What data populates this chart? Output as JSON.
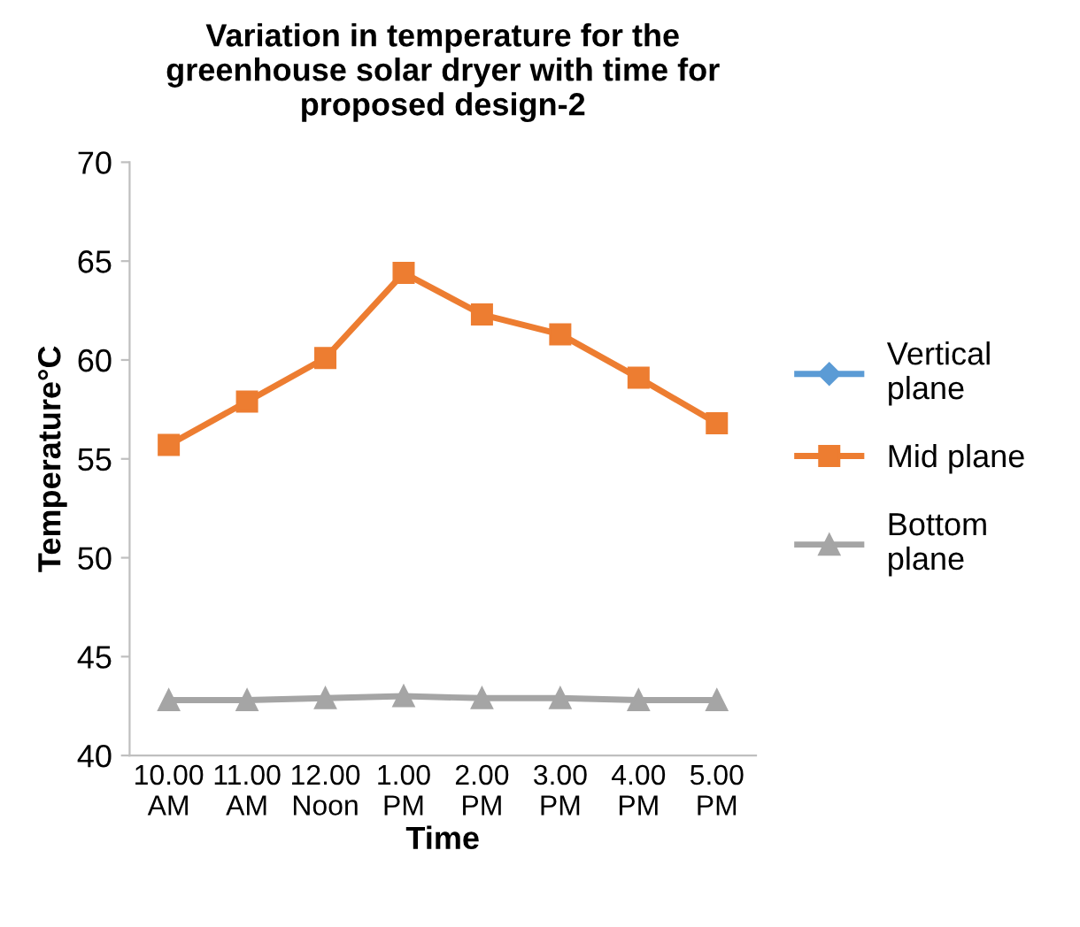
{
  "chart_data": {
    "type": "line",
    "title": "Variation in temperature for the\ngreenhouse solar dryer with time for\nproposed design-2",
    "xlabel": "Time",
    "ylabel": "Temperature°C",
    "categories": [
      "10.00\nAM",
      "11.00\nAM",
      "12.00\nNoon",
      "1.00\nPM",
      "2.00\nPM",
      "3.00\nPM",
      "4.00\nPM",
      "5.00\nPM"
    ],
    "ylim": [
      40,
      70
    ],
    "yticks": [
      40,
      45,
      50,
      55,
      60,
      65,
      70
    ],
    "grid": false,
    "legend": "right",
    "series": [
      {
        "name": "Vertical\nplane",
        "color": "#5b9bd5",
        "marker": "diamond",
        "values": [
          null,
          null,
          null,
          null,
          null,
          null,
          null,
          null
        ]
      },
      {
        "name": "Mid plane",
        "color": "#ed7d31",
        "marker": "square",
        "values": [
          55.7,
          57.9,
          60.1,
          64.4,
          62.3,
          61.3,
          59.1,
          56.8
        ]
      },
      {
        "name": "Bottom\nplane",
        "color": "#a5a5a5",
        "marker": "triangle",
        "values": [
          42.8,
          42.8,
          42.9,
          43.0,
          42.9,
          42.9,
          42.8,
          42.8
        ]
      }
    ]
  }
}
